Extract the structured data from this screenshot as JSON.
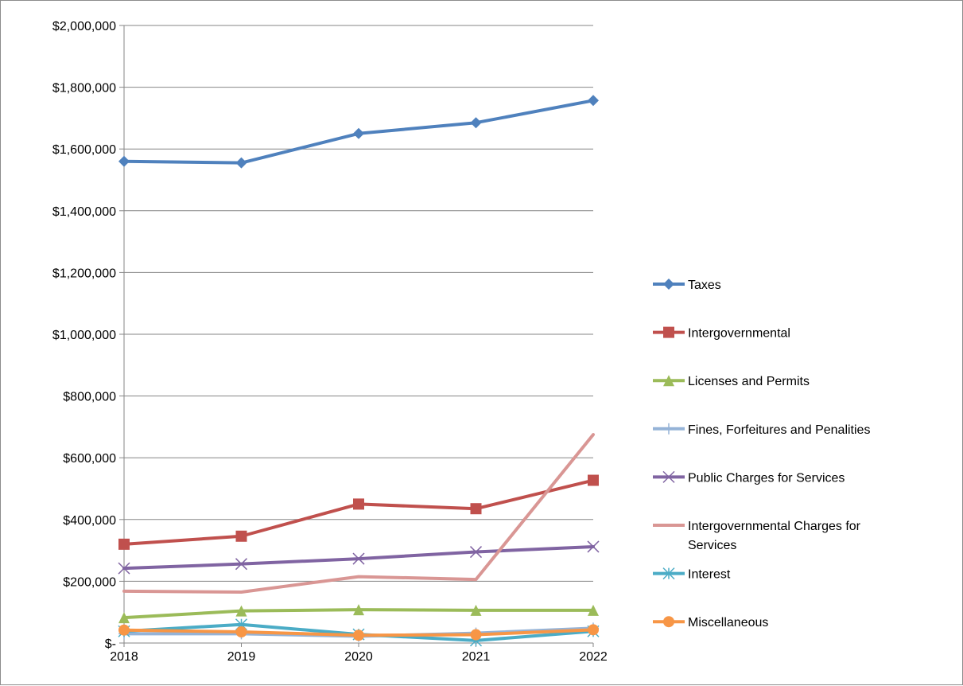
{
  "chart_data": {
    "type": "line",
    "title": "",
    "xlabel": "",
    "ylabel": "",
    "categories": [
      "2018",
      "2019",
      "2020",
      "2021",
      "2022"
    ],
    "ylim": [
      0,
      2000000
    ],
    "yticks": [
      0,
      200000,
      400000,
      600000,
      800000,
      1000000,
      1200000,
      1400000,
      1600000,
      1800000,
      2000000
    ],
    "ytick_labels": [
      "$-",
      "$200,000",
      "$400,000",
      "$600,000",
      "$800,000",
      "$1,000,000",
      "$1,200,000",
      "$1,400,000",
      "$1,600,000",
      "$1,800,000",
      "$2,000,000"
    ],
    "grid": true,
    "legend_position": "right",
    "series": [
      {
        "name": "Taxes",
        "values": [
          1560000,
          1555000,
          1650000,
          1685000,
          1757000
        ],
        "color": "#4F81BD",
        "marker": "diamond"
      },
      {
        "name": "Intergovernmental",
        "values": [
          320000,
          346000,
          450000,
          435000,
          527000
        ],
        "color": "#C0504D",
        "marker": "square"
      },
      {
        "name": "Licenses and Permits",
        "values": [
          82000,
          104000,
          108000,
          106000,
          106000
        ],
        "color": "#9BBB59",
        "marker": "triangle"
      },
      {
        "name": "Fines, Forfeitures and Penalities",
        "values": [
          30000,
          30000,
          22000,
          32000,
          48000
        ],
        "color": "#95B3D7",
        "marker": "plus"
      },
      {
        "name": "Public Charges for Services",
        "values": [
          242000,
          256000,
          273000,
          295000,
          312000
        ],
        "color": "#8064A2",
        "marker": "x"
      },
      {
        "name": "Intergovernmental Charges for Services",
        "values": [
          168000,
          165000,
          215000,
          206000,
          675000
        ],
        "color": "#D99694",
        "marker": "none"
      },
      {
        "name": "Interest",
        "values": [
          38000,
          60000,
          28000,
          8000,
          38000
        ],
        "color": "#4BACC6",
        "marker": "star"
      },
      {
        "name": "Miscellaneous",
        "values": [
          42000,
          36000,
          25000,
          27000,
          43000
        ],
        "color": "#F79646",
        "marker": "circle"
      }
    ]
  }
}
